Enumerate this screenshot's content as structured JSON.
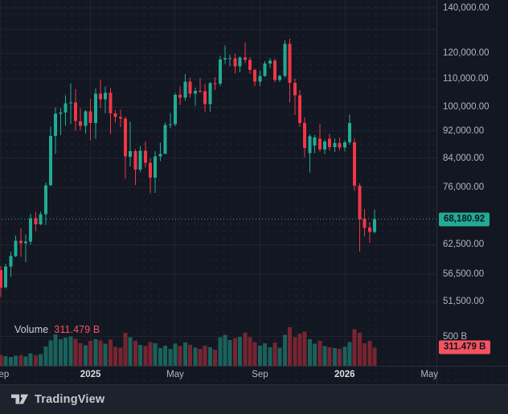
{
  "colors": {
    "background": "#131722",
    "panel": "#1e222d",
    "grid": "#1e2430",
    "axis_border": "#2a2e39",
    "axis_text": "#b2b5be",
    "up": "#22ab94",
    "down": "#f23645",
    "up_badge": "#22ab94",
    "down_badge": "#f7525f",
    "volume_up": "rgba(34,171,148,0.5)",
    "volume_down": "rgba(242,54,69,0.45)",
    "last_price_line": "#22ab94"
  },
  "volume_indicator": {
    "label": "Volume",
    "value": "311.479 B"
  },
  "price_axis": {
    "labels": [
      {
        "text": "140,000.00",
        "value": 140000
      },
      {
        "text": "120,000.00",
        "value": 120000
      },
      {
        "text": "110,000.00",
        "value": 110000
      },
      {
        "text": "100,000.00",
        "value": 100000
      },
      {
        "text": "92,000.00",
        "value": 92000
      },
      {
        "text": "84,000.00",
        "value": 84000
      },
      {
        "text": "76,000.00",
        "value": 76000
      },
      {
        "text": "62,500.00",
        "value": 62500
      },
      {
        "text": "56,500.00",
        "value": 56500
      },
      {
        "text": "51,500.00",
        "value": 51500
      }
    ],
    "extra_gridlines": [
      130000
    ],
    "last_price_badge": "68,180.92",
    "volume_gridline_label": "500 B",
    "volume_gridline_value": 500,
    "volume_badge": "311.479 B"
  },
  "time_axis": {
    "ticks": [
      {
        "label": "Sep",
        "index": 0,
        "major": false
      },
      {
        "label": "2025",
        "index": 18,
        "major": true
      },
      {
        "label": "May",
        "index": 35,
        "major": false
      },
      {
        "label": "Sep",
        "index": 52,
        "major": false
      },
      {
        "label": "2026",
        "index": 69,
        "major": true
      },
      {
        "label": "May",
        "index": 86,
        "major": false
      }
    ]
  },
  "branding": {
    "logo_text": "TradingView"
  },
  "chart_data": {
    "type": "candlestick",
    "interval": "weekly",
    "price_scale": "logarithmic",
    "legend": [
      "Volume"
    ],
    "last_close": 68180.92,
    "volume_unit": "B",
    "last_volume": 311.479,
    "last_volume_direction": "down",
    "candles_format": [
      "open",
      "high",
      "low",
      "close",
      "volume_billions"
    ],
    "candles": [
      [
        57300,
        58100,
        52300,
        54000,
        185
      ],
      [
        54000,
        58600,
        53900,
        58000,
        165
      ],
      [
        58000,
        61000,
        56000,
        60100,
        150
      ],
      [
        60100,
        64500,
        59900,
        63300,
        170
      ],
      [
        63300,
        66100,
        60000,
        62800,
        175
      ],
      [
        62800,
        64700,
        58900,
        63200,
        160
      ],
      [
        63200,
        69400,
        62500,
        68400,
        210
      ],
      [
        68400,
        69900,
        65500,
        67000,
        180
      ],
      [
        67000,
        70000,
        66800,
        69300,
        200
      ],
      [
        69300,
        77300,
        66800,
        76500,
        330
      ],
      [
        76500,
        93400,
        76400,
        90600,
        430
      ],
      [
        90600,
        99800,
        85100,
        97700,
        535
      ],
      [
        97700,
        99600,
        90800,
        98000,
        450
      ],
      [
        98000,
        104000,
        93700,
        101200,
        480
      ],
      [
        101200,
        108300,
        94200,
        101400,
        500
      ],
      [
        101400,
        106100,
        92200,
        95200,
        460
      ],
      [
        95200,
        99500,
        92300,
        93700,
        385
      ],
      [
        93700,
        98800,
        91300,
        98400,
        350
      ],
      [
        98400,
        102700,
        89200,
        94600,
        425
      ],
      [
        94600,
        106400,
        89700,
        104500,
        455
      ],
      [
        104500,
        109600,
        99500,
        102600,
        430
      ],
      [
        102600,
        107200,
        97800,
        104800,
        380
      ],
      [
        104800,
        106700,
        91200,
        97800,
        445
      ],
      [
        97800,
        98900,
        94900,
        96600,
        320
      ],
      [
        96600,
        99000,
        93300,
        96100,
        305
      ],
      [
        96100,
        96700,
        78200,
        84400,
        565
      ],
      [
        84400,
        95000,
        81600,
        86000,
        485
      ],
      [
        86000,
        86500,
        76600,
        80700,
        425
      ],
      [
        80700,
        87500,
        80100,
        86100,
        355
      ],
      [
        86100,
        88800,
        81300,
        82600,
        335
      ],
      [
        82600,
        83900,
        74500,
        78500,
        405
      ],
      [
        78500,
        86000,
        74600,
        84500,
        385
      ],
      [
        84500,
        88500,
        83100,
        85200,
        300
      ],
      [
        85200,
        94700,
        85100,
        94000,
        345
      ],
      [
        94000,
        97900,
        92900,
        94200,
        285
      ],
      [
        94200,
        104900,
        93600,
        104100,
        375
      ],
      [
        104100,
        107100,
        100700,
        103100,
        335
      ],
      [
        103100,
        111900,
        102100,
        109000,
        395
      ],
      [
        109000,
        110500,
        103100,
        104600,
        355
      ],
      [
        104600,
        106800,
        100400,
        105600,
        305
      ],
      [
        105600,
        110300,
        104800,
        105500,
        285
      ],
      [
        105500,
        108100,
        98200,
        100900,
        345
      ],
      [
        100900,
        108800,
        98300,
        108300,
        315
      ],
      [
        108300,
        110600,
        105900,
        108200,
        275
      ],
      [
        108200,
        118900,
        107300,
        117500,
        485
      ],
      [
        117500,
        123200,
        115700,
        117900,
        525
      ],
      [
        117900,
        119500,
        114800,
        118000,
        435
      ],
      [
        118000,
        119700,
        112000,
        114800,
        475
      ],
      [
        114800,
        118800,
        112400,
        118300,
        495
      ],
      [
        118300,
        124500,
        116100,
        117300,
        565
      ],
      [
        117300,
        118500,
        111900,
        113400,
        485
      ],
      [
        113400,
        113800,
        107300,
        108900,
        405
      ],
      [
        108900,
        113000,
        107400,
        111100,
        345
      ],
      [
        111100,
        116800,
        110700,
        115900,
        385
      ],
      [
        115900,
        118100,
        114100,
        117000,
        315
      ],
      [
        117000,
        117800,
        108700,
        109600,
        395
      ],
      [
        109600,
        111500,
        108800,
        111000,
        305
      ],
      [
        111000,
        125500,
        110500,
        124000,
        525
      ],
      [
        124000,
        126200,
        101500,
        108500,
        655
      ],
      [
        108500,
        110000,
        97200,
        104000,
        485
      ],
      [
        104000,
        105800,
        93500,
        94600,
        545
      ],
      [
        94600,
        96500,
        84200,
        86900,
        585
      ],
      [
        85400,
        91000,
        79900,
        90400,
        455
      ],
      [
        87700,
        90800,
        85400,
        90100,
        375
      ],
      [
        89700,
        94400,
        85900,
        86400,
        425
      ],
      [
        86400,
        89500,
        85200,
        88900,
        335
      ],
      [
        89700,
        91200,
        86100,
        87200,
        315
      ],
      [
        87200,
        89800,
        85700,
        88300,
        300
      ],
      [
        88300,
        90000,
        86200,
        87000,
        290
      ],
      [
        87000,
        89200,
        85800,
        88600,
        325
      ],
      [
        88600,
        97400,
        87900,
        94600,
        405
      ],
      [
        88600,
        89700,
        75100,
        76400,
        625
      ],
      [
        76400,
        77000,
        61000,
        68100,
        565
      ],
      [
        68300,
        70600,
        64300,
        66200,
        385
      ],
      [
        66300,
        67500,
        62900,
        65300,
        425
      ],
      [
        65300,
        70400,
        64900,
        68180.92,
        311.479
      ]
    ]
  }
}
